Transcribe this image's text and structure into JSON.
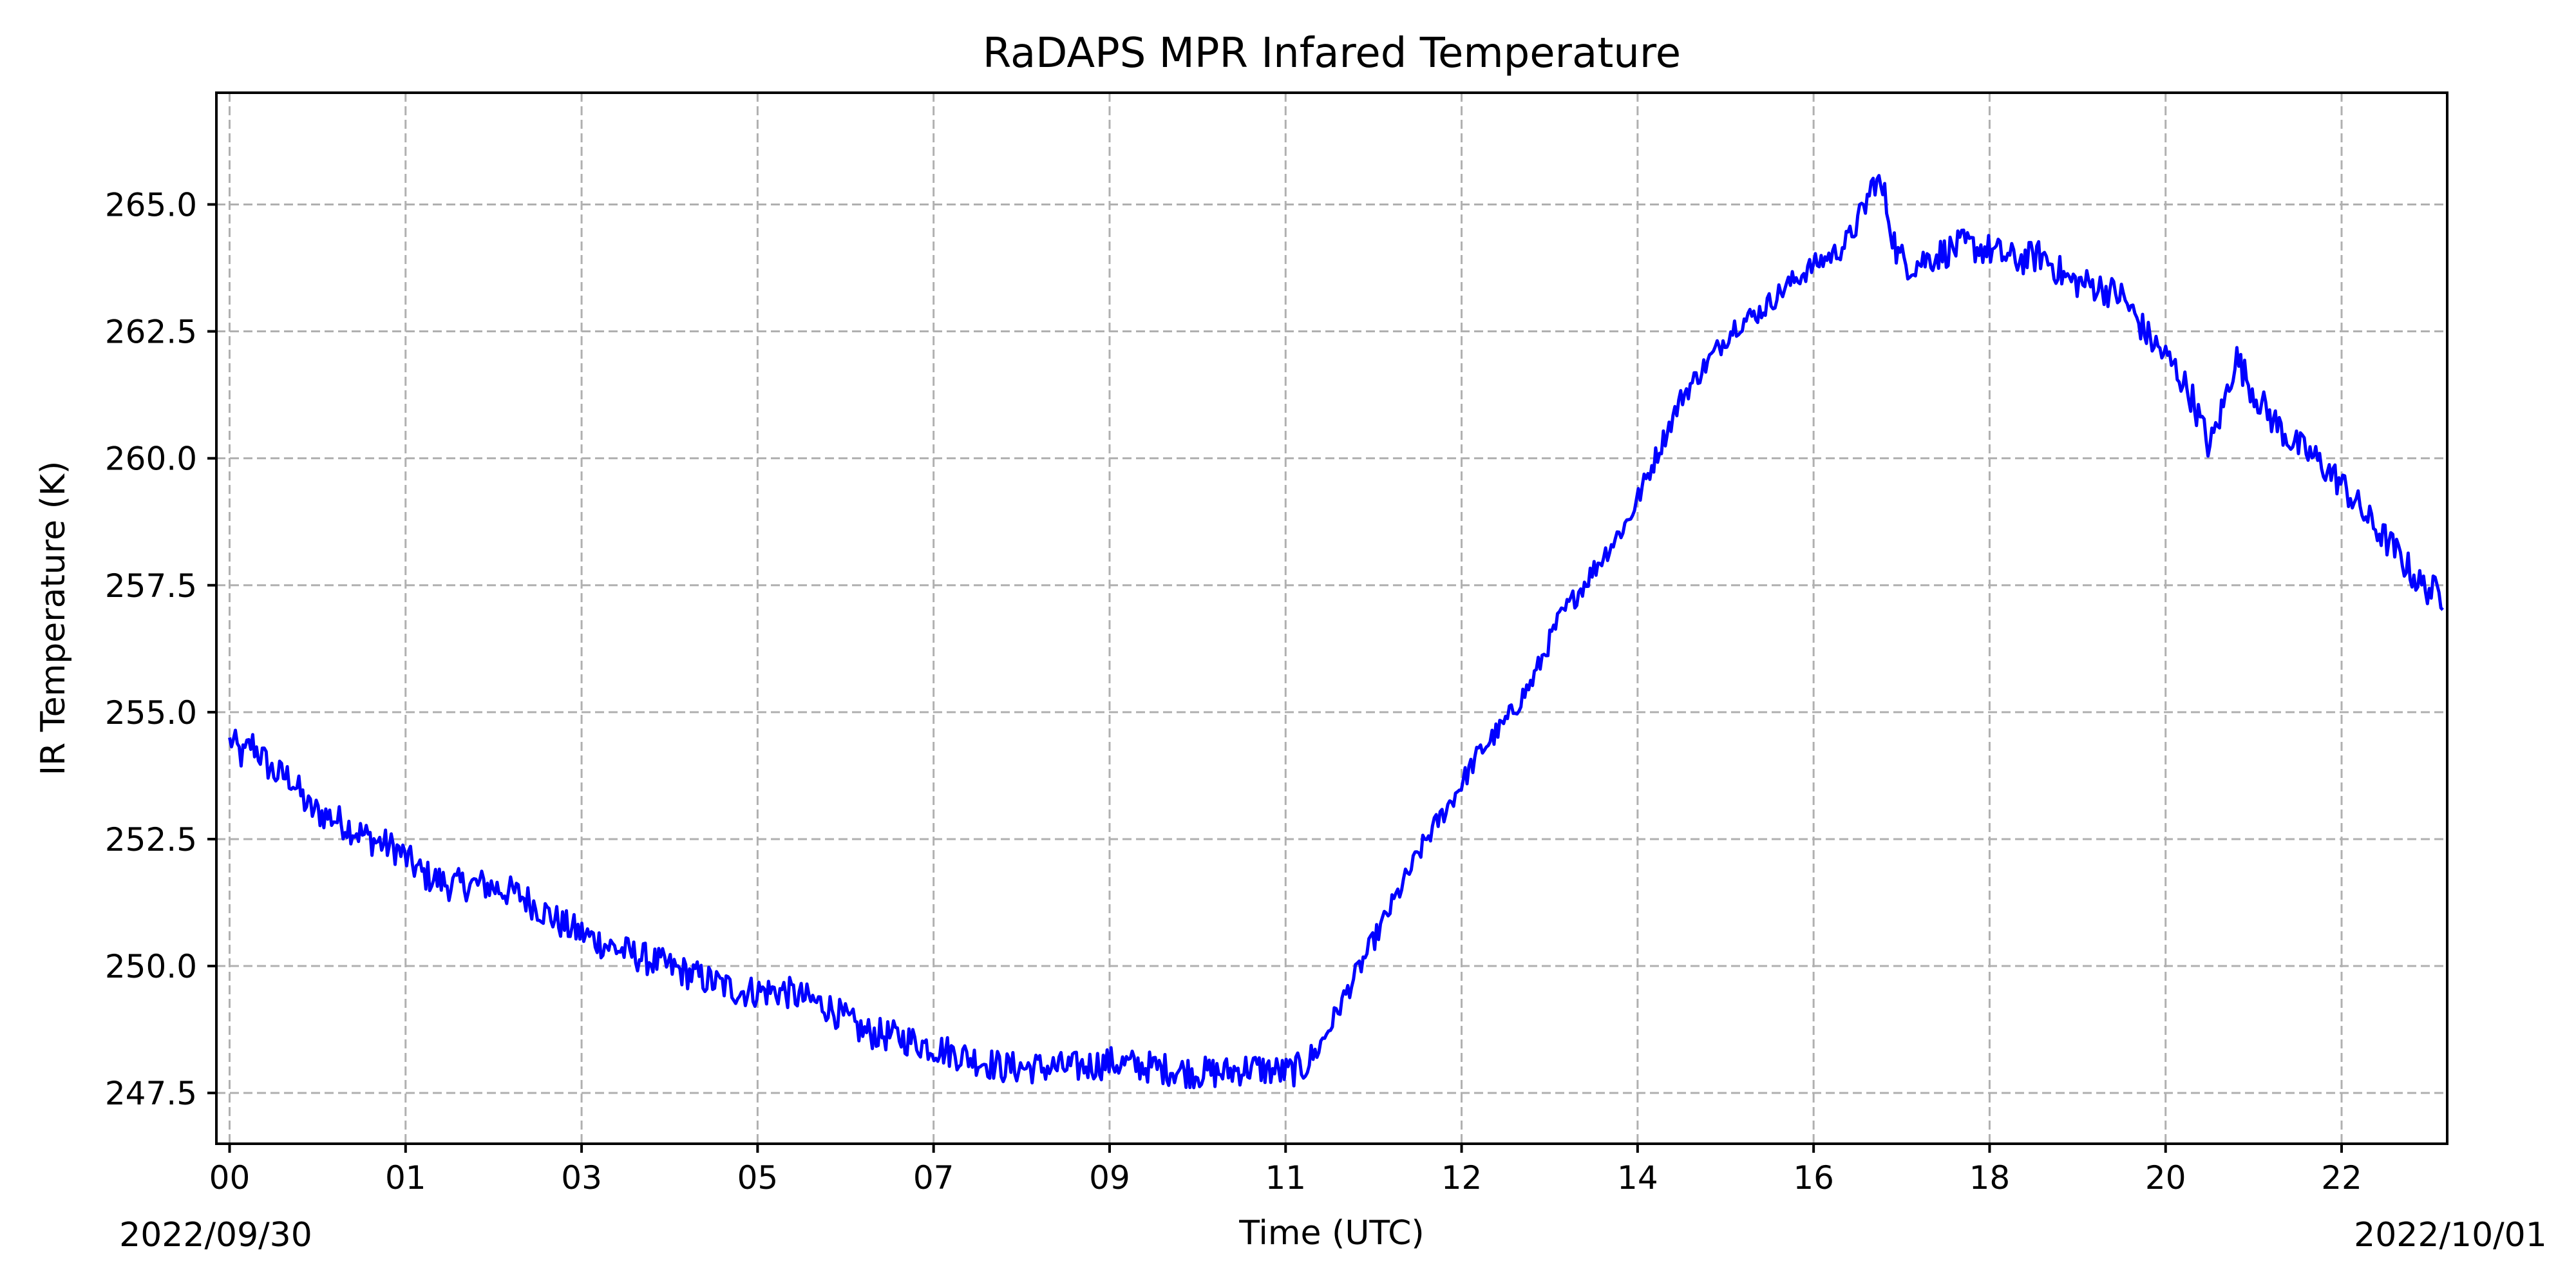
{
  "chart_data": {
    "type": "line",
    "title": "RaDAPS MPR Infared Temperature",
    "xlabel": "Time (UTC)",
    "ylabel": "IR Temperature (K)",
    "date_labels": {
      "start": "2022/09/30",
      "end": "2022/10/01"
    },
    "x_tick_labels": [
      "00",
      "01",
      "03",
      "05",
      "07",
      "09",
      "11",
      "12",
      "14",
      "16",
      "18",
      "20",
      "22"
    ],
    "y_tick_labels": [
      "247.5",
      "250.0",
      "252.5",
      "255.0",
      "257.5",
      "260.0",
      "262.5",
      "265.0"
    ],
    "y_ticks": [
      247.5,
      250.0,
      252.5,
      255.0,
      257.5,
      260.0,
      262.5,
      265.0
    ],
    "ylim": [
      246.5,
      267.2
    ],
    "grid": true,
    "line_color": "#0000ff",
    "grid_color": "#b0b0b0",
    "series": [
      {
        "anchors": [
          {
            "t": 0.0,
            "v": 254.5
          },
          {
            "t": 0.15,
            "v": 254.1
          },
          {
            "t": 0.25,
            "v": 254.4
          },
          {
            "t": 0.5,
            "v": 253.8
          },
          {
            "t": 0.7,
            "v": 253.7
          },
          {
            "t": 0.9,
            "v": 253.1
          },
          {
            "t": 1.2,
            "v": 252.9
          },
          {
            "t": 1.6,
            "v": 252.5
          },
          {
            "t": 1.9,
            "v": 252.3
          },
          {
            "t": 2.2,
            "v": 251.8
          },
          {
            "t": 2.5,
            "v": 251.6
          },
          {
            "t": 2.9,
            "v": 251.6
          },
          {
            "t": 3.3,
            "v": 251.4
          },
          {
            "t": 3.8,
            "v": 250.8
          },
          {
            "t": 4.3,
            "v": 250.4
          },
          {
            "t": 4.8,
            "v": 250.1
          },
          {
            "t": 5.3,
            "v": 249.8
          },
          {
            "t": 5.8,
            "v": 249.5
          },
          {
            "t": 6.3,
            "v": 249.5
          },
          {
            "t": 6.8,
            "v": 249.2
          },
          {
            "t": 7.2,
            "v": 248.7
          },
          {
            "t": 7.6,
            "v": 248.6
          },
          {
            "t": 8.0,
            "v": 248.4
          },
          {
            "t": 8.4,
            "v": 248.2
          },
          {
            "t": 8.8,
            "v": 248.0
          },
          {
            "t": 9.2,
            "v": 248.0
          },
          {
            "t": 9.6,
            "v": 248.0
          },
          {
            "t": 10.0,
            "v": 248.1
          },
          {
            "t": 10.5,
            "v": 248.0
          },
          {
            "t": 11.0,
            "v": 247.9
          },
          {
            "t": 11.3,
            "v": 247.9
          },
          {
            "t": 11.6,
            "v": 248.0
          },
          {
            "t": 12.0,
            "v": 247.9
          },
          {
            "t": 12.2,
            "v": 248.0
          },
          {
            "t": 12.35,
            "v": 248.3
          },
          {
            "t": 12.5,
            "v": 248.8
          },
          {
            "t": 12.7,
            "v": 249.5
          },
          {
            "t": 13.0,
            "v": 250.5
          },
          {
            "t": 13.3,
            "v": 251.5
          },
          {
            "t": 13.6,
            "v": 252.5
          },
          {
            "t": 13.9,
            "v": 253.3
          },
          {
            "t": 14.2,
            "v": 254.2
          },
          {
            "t": 14.5,
            "v": 254.8
          },
          {
            "t": 14.8,
            "v": 255.6
          },
          {
            "t": 15.1,
            "v": 256.8
          },
          {
            "t": 15.5,
            "v": 257.8
          },
          {
            "t": 15.9,
            "v": 258.8
          },
          {
            "t": 16.2,
            "v": 260.0
          },
          {
            "t": 16.5,
            "v": 261.2
          },
          {
            "t": 16.8,
            "v": 261.9
          },
          {
            "t": 17.1,
            "v": 262.6
          },
          {
            "t": 17.4,
            "v": 262.9
          },
          {
            "t": 17.7,
            "v": 263.4
          },
          {
            "t": 18.0,
            "v": 263.8
          },
          {
            "t": 18.3,
            "v": 264.1
          },
          {
            "t": 18.5,
            "v": 264.6
          },
          {
            "t": 18.7,
            "v": 265.5
          },
          {
            "t": 18.8,
            "v": 265.2
          },
          {
            "t": 18.95,
            "v": 264.0
          },
          {
            "t": 19.1,
            "v": 263.8
          },
          {
            "t": 19.4,
            "v": 264.0
          },
          {
            "t": 19.7,
            "v": 264.2
          },
          {
            "t": 20.0,
            "v": 264.1
          },
          {
            "t": 20.3,
            "v": 263.9
          },
          {
            "t": 20.6,
            "v": 264.0
          },
          {
            "t": 20.9,
            "v": 263.5
          },
          {
            "t": 21.2,
            "v": 263.4
          },
          {
            "t": 21.5,
            "v": 263.2
          },
          {
            "t": 21.8,
            "v": 262.4
          },
          {
            "t": 22.1,
            "v": 261.8
          },
          {
            "t": 22.3,
            "v": 261.2
          },
          {
            "t": 22.5,
            "v": 260.2
          },
          {
            "t": 22.65,
            "v": 261.0
          },
          {
            "t": 22.8,
            "v": 262.0
          },
          {
            "t": 23.0,
            "v": 261.3
          },
          {
            "t": 23.2,
            "v": 260.8
          },
          {
            "t": 23.45,
            "v": 260.3
          },
          {
            "t": 23.7,
            "v": 260.0
          },
          {
            "t": 24.0,
            "v": 259.5
          },
          {
            "t": 24.3,
            "v": 258.8
          },
          {
            "t": 24.6,
            "v": 258.2
          },
          {
            "t": 24.9,
            "v": 257.5
          },
          {
            "t": 25.15,
            "v": 257.3
          }
        ]
      }
    ]
  }
}
